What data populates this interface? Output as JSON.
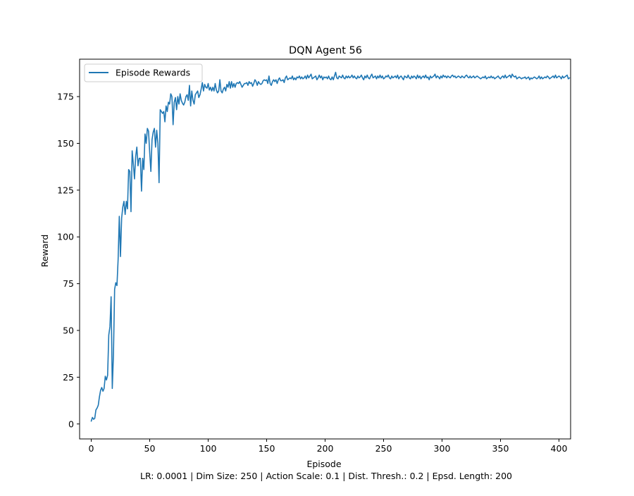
{
  "chart_data": {
    "type": "line",
    "title": "DQN Agent 56",
    "xlabel": "Episode",
    "ylabel": "Reward",
    "footer": "LR: 0.0001 | Dim Size: 250 | Action Scale: 0.1 | Dist. Thresh.: 0.2 | Epsd. Length: 200",
    "xlim": [
      -9.95,
      409.95
    ],
    "ylim": [
      -8,
      195
    ],
    "x_ticks": [
      0,
      50,
      100,
      150,
      200,
      250,
      300,
      350,
      400
    ],
    "y_ticks": [
      0,
      25,
      50,
      75,
      100,
      125,
      150,
      175
    ],
    "grid": false,
    "legend_position": "top-left",
    "series": [
      {
        "name": "Episode Rewards",
        "color": "#1f77b4",
        "x_start": 0,
        "x_step": 1,
        "values": [
          1.5,
          3.5,
          2.5,
          3.0,
          7.5,
          8.5,
          10.0,
          14.5,
          18.0,
          19.5,
          17.5,
          19.0,
          25.5,
          23.5,
          26.0,
          47.5,
          52.0,
          68.0,
          19.0,
          37.0,
          72.0,
          75.5,
          74.0,
          88.0,
          111.0,
          89.5,
          110.0,
          116.0,
          119.0,
          112.0,
          119.0,
          115.0,
          136.0,
          135.0,
          113.5,
          146.0,
          139.0,
          131.0,
          143.0,
          148.0,
          138.0,
          142.0,
          142.0,
          124.5,
          142.0,
          136.0,
          155.0,
          150.0,
          158.0,
          156.5,
          145.0,
          135.0,
          152.0,
          156.0,
          158.0,
          148.0,
          157.0,
          150.0,
          129.0,
          168.0,
          167.0,
          166.0,
          167.0,
          161.5,
          170.0,
          167.0,
          172.0,
          171.0,
          176.5,
          175.0,
          160.0,
          172.0,
          174.5,
          168.0,
          175.0,
          171.0,
          176.5,
          173.0,
          171.5,
          170.5,
          172.0,
          175.0,
          176.0,
          173.0,
          181.0,
          170.0,
          178.0,
          173.0,
          171.0,
          176.0,
          177.0,
          178.0,
          174.5,
          176.0,
          179.0,
          182.5,
          178.0,
          181.5,
          180.0,
          179.5,
          182.0,
          178.5,
          180.0,
          178.0,
          180.0,
          178.0,
          182.0,
          178.5,
          177.0,
          178.0,
          184.0,
          178.0,
          177.0,
          179.0,
          180.0,
          178.0,
          181.5,
          180.0,
          183.0,
          179.5,
          183.0,
          180.0,
          182.0,
          180.0,
          182.0,
          182.5,
          182.0,
          183.0,
          181.5,
          180.0,
          181.0,
          182.0,
          182.0,
          182.5,
          181.0,
          183.0,
          182.0,
          182.5,
          180.5,
          182.0,
          184.0,
          183.0,
          181.0,
          183.0,
          182.0,
          181.5,
          182.0,
          183.5,
          184.0,
          183.5,
          184.0,
          182.0,
          186.0,
          182.0,
          181.0,
          183.0,
          184.0,
          183.0,
          184.0,
          182.0,
          184.0,
          185.0,
          183.5,
          183.5,
          184.0,
          182.5,
          185.0,
          186.0,
          184.0,
          184.5,
          185.0,
          184.5,
          186.0,
          184.0,
          185.0,
          184.0,
          185.5,
          185.0,
          186.0,
          184.5,
          185.5,
          184.5,
          185.0,
          186.0,
          184.5,
          186.5,
          185.0,
          186.0,
          187.0,
          184.5,
          185.0,
          185.5,
          186.0,
          184.0,
          185.0,
          186.5,
          185.0,
          186.0,
          184.0,
          185.5,
          185.0,
          185.5,
          184.5,
          186.0,
          184.5,
          184.0,
          185.5,
          184.0,
          186.0,
          188.0,
          185.0,
          184.5,
          186.0,
          185.5,
          185.0,
          186.5,
          185.0,
          184.5,
          186.0,
          185.0,
          186.0,
          185.0,
          185.5,
          186.5,
          185.0,
          186.0,
          185.0,
          184.5,
          186.0,
          185.0,
          185.5,
          186.5,
          185.0,
          184.0,
          186.0,
          185.0,
          186.5,
          185.0,
          184.5,
          186.0,
          187.0,
          185.0,
          185.5,
          186.0,
          184.5,
          186.0,
          185.0,
          186.5,
          185.0,
          186.0,
          184.5,
          185.0,
          186.0,
          185.5,
          186.5,
          185.0,
          184.5,
          186.0,
          185.0,
          185.5,
          186.0,
          185.0,
          186.5,
          184.5,
          185.5,
          186.0,
          185.0,
          184.0,
          186.0,
          185.5,
          185.0,
          186.5,
          185.0,
          184.5,
          186.0,
          185.0,
          186.0,
          185.5,
          184.5,
          186.5,
          185.0,
          186.0,
          184.5,
          185.5,
          186.0,
          185.0,
          186.5,
          185.0,
          185.5,
          184.0,
          186.0,
          185.0,
          185.5,
          186.0,
          187.0,
          185.0,
          186.0,
          185.5,
          184.5,
          186.0,
          185.0,
          186.5,
          185.5,
          186.0,
          185.0,
          186.0,
          185.5,
          185.0,
          186.0,
          186.5,
          185.5,
          186.0,
          185.0,
          185.5,
          186.0,
          185.5,
          185.0,
          186.0,
          185.5,
          185.0,
          186.0,
          186.5,
          185.5,
          185.0,
          186.0,
          185.0,
          185.5,
          186.0,
          185.0,
          185.5,
          186.0,
          185.5,
          185.0,
          184.5,
          185.0,
          185.5,
          185.0,
          186.0,
          184.5,
          185.0,
          185.5,
          185.0,
          186.0,
          185.0,
          185.5,
          184.5,
          185.0,
          185.5,
          186.0,
          185.0,
          184.5,
          185.5,
          186.0,
          185.0,
          186.5,
          185.0,
          185.5,
          186.0,
          186.5,
          185.0,
          187.0,
          186.0,
          185.5,
          186.0,
          184.5,
          185.0,
          185.5,
          185.0,
          184.5,
          185.0,
          185.0,
          185.5,
          184.5,
          185.0,
          185.5,
          184.0,
          185.0,
          184.5,
          185.0,
          185.5,
          185.0,
          184.5,
          185.0,
          186.0,
          184.5,
          185.5,
          184.5,
          185.0,
          185.5,
          185.0,
          186.0,
          185.5,
          184.5,
          185.0,
          185.5,
          186.0,
          185.0,
          186.5,
          185.0,
          185.5,
          186.0,
          185.5,
          184.5,
          186.0,
          185.0,
          185.5,
          186.0,
          186.5,
          184.5,
          185.0
        ]
      }
    ]
  }
}
